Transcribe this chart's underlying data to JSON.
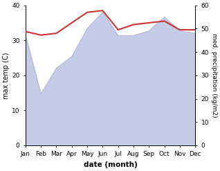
{
  "months": [
    "Jan",
    "Feb",
    "Mar",
    "Apr",
    "May",
    "Jun",
    "Jul",
    "Aug",
    "Sep",
    "Oct",
    "Nov",
    "Dec"
  ],
  "month_x": [
    0,
    1,
    2,
    3,
    4,
    5,
    6,
    7,
    8,
    9,
    10,
    11
  ],
  "temp": [
    32.5,
    31.5,
    32.0,
    35.0,
    38.0,
    38.5,
    33.0,
    34.5,
    35.0,
    35.5,
    33.0,
    33.0
  ],
  "precip": [
    47,
    22,
    33,
    38,
    50,
    57,
    47,
    47,
    49,
    55,
    49,
    48
  ],
  "temp_color": "#cc3333",
  "precip_fill_color": "#c5cce8",
  "precip_edge_color": "#b0b8d8",
  "ylabel_left": "max temp (C)",
  "ylabel_right": "med. precipitation (kg/m2)",
  "xlabel": "date (month)",
  "ylim_left": [
    0,
    40
  ],
  "ylim_right": [
    0,
    60
  ],
  "yticks_left": [
    0,
    10,
    20,
    30,
    40
  ],
  "yticks_right": [
    0,
    10,
    20,
    30,
    40,
    50,
    60
  ],
  "bg_color": "#ffffff",
  "temp_linewidth": 1.5,
  "precip_linewidth": 0.8,
  "figsize": [
    3.18,
    2.47
  ],
  "dpi": 100
}
